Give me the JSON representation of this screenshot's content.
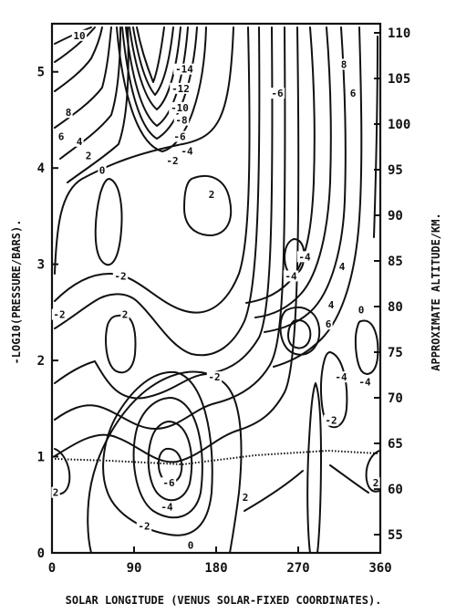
{
  "chart_data": {
    "type": "contour",
    "xlabel": "SOLAR LONGITUDE (VENUS SOLAR-FIXED COORDINATES).",
    "ylabel_left": "-LOG10(PRESSURE/BARS).",
    "ylabel_right": "APPROXIMATE ALTITUDE/KM.",
    "xlim": [
      0,
      360
    ],
    "ylim": [
      0,
      5.5
    ],
    "x_ticks": [
      "0",
      "90",
      "180",
      "270",
      "360"
    ],
    "y_ticks_left": [
      "0",
      "1",
      "2",
      "3",
      "4",
      "5"
    ],
    "y_ticks_right": [
      "55",
      "60",
      "65",
      "70",
      "75",
      "80",
      "85",
      "90",
      "95",
      "100",
      "105",
      "110"
    ],
    "altitude_range": [
      53,
      111
    ],
    "contour_labels": [
      {
        "text": "10",
        "x": 30,
        "y": 5.35
      },
      {
        "text": "8",
        "x": 18,
        "y": 4.55
      },
      {
        "text": "6",
        "x": 10,
        "y": 4.3
      },
      {
        "text": "4",
        "x": 30,
        "y": 4.25
      },
      {
        "text": "2",
        "x": 40,
        "y": 4.1
      },
      {
        "text": "0",
        "x": 55,
        "y": 3.95
      },
      {
        "text": "-14",
        "x": 145,
        "y": 5.0
      },
      {
        "text": "-12",
        "x": 141,
        "y": 4.8
      },
      {
        "text": "-10",
        "x": 140,
        "y": 4.6
      },
      {
        "text": "-8",
        "x": 142,
        "y": 4.47
      },
      {
        "text": "-6",
        "x": 140,
        "y": 4.3
      },
      {
        "text": "-4",
        "x": 148,
        "y": 4.15
      },
      {
        "text": "-2",
        "x": 132,
        "y": 4.05
      },
      {
        "text": "2",
        "x": 175,
        "y": 3.7
      },
      {
        "text": "-2",
        "x": 75,
        "y": 2.85
      },
      {
        "text": "-2",
        "x": 8,
        "y": 2.45
      },
      {
        "text": "2",
        "x": 80,
        "y": 2.45
      },
      {
        "text": "-2",
        "x": 178,
        "y": 1.8
      },
      {
        "text": "-6",
        "x": 247,
        "y": 4.75
      },
      {
        "text": "8",
        "x": 320,
        "y": 5.05
      },
      {
        "text": "6",
        "x": 330,
        "y": 4.75
      },
      {
        "text": "-4",
        "x": 277,
        "y": 3.05
      },
      {
        "text": "-4",
        "x": 262,
        "y": 2.85
      },
      {
        "text": "4",
        "x": 318,
        "y": 2.95
      },
      {
        "text": "4",
        "x": 306,
        "y": 2.55
      },
      {
        "text": "6",
        "x": 303,
        "y": 2.35
      },
      {
        "text": "0",
        "x": 339,
        "y": 2.5
      },
      {
        "text": "-4",
        "x": 317,
        "y": 1.8
      },
      {
        "text": "-4",
        "x": 343,
        "y": 1.75
      },
      {
        "text": "-2",
        "x": 306,
        "y": 1.35
      },
      {
        "text": "-6",
        "x": 128,
        "y": 0.7
      },
      {
        "text": "-4",
        "x": 126,
        "y": 0.45
      },
      {
        "text": "-2",
        "x": 101,
        "y": 0.25
      },
      {
        "text": "2",
        "x": 212,
        "y": 0.55
      },
      {
        "text": "0",
        "x": 152,
        "y": 0.05
      },
      {
        "text": "2",
        "x": 4,
        "y": 0.6
      },
      {
        "text": "2",
        "x": 355,
        "y": 0.7
      }
    ]
  }
}
